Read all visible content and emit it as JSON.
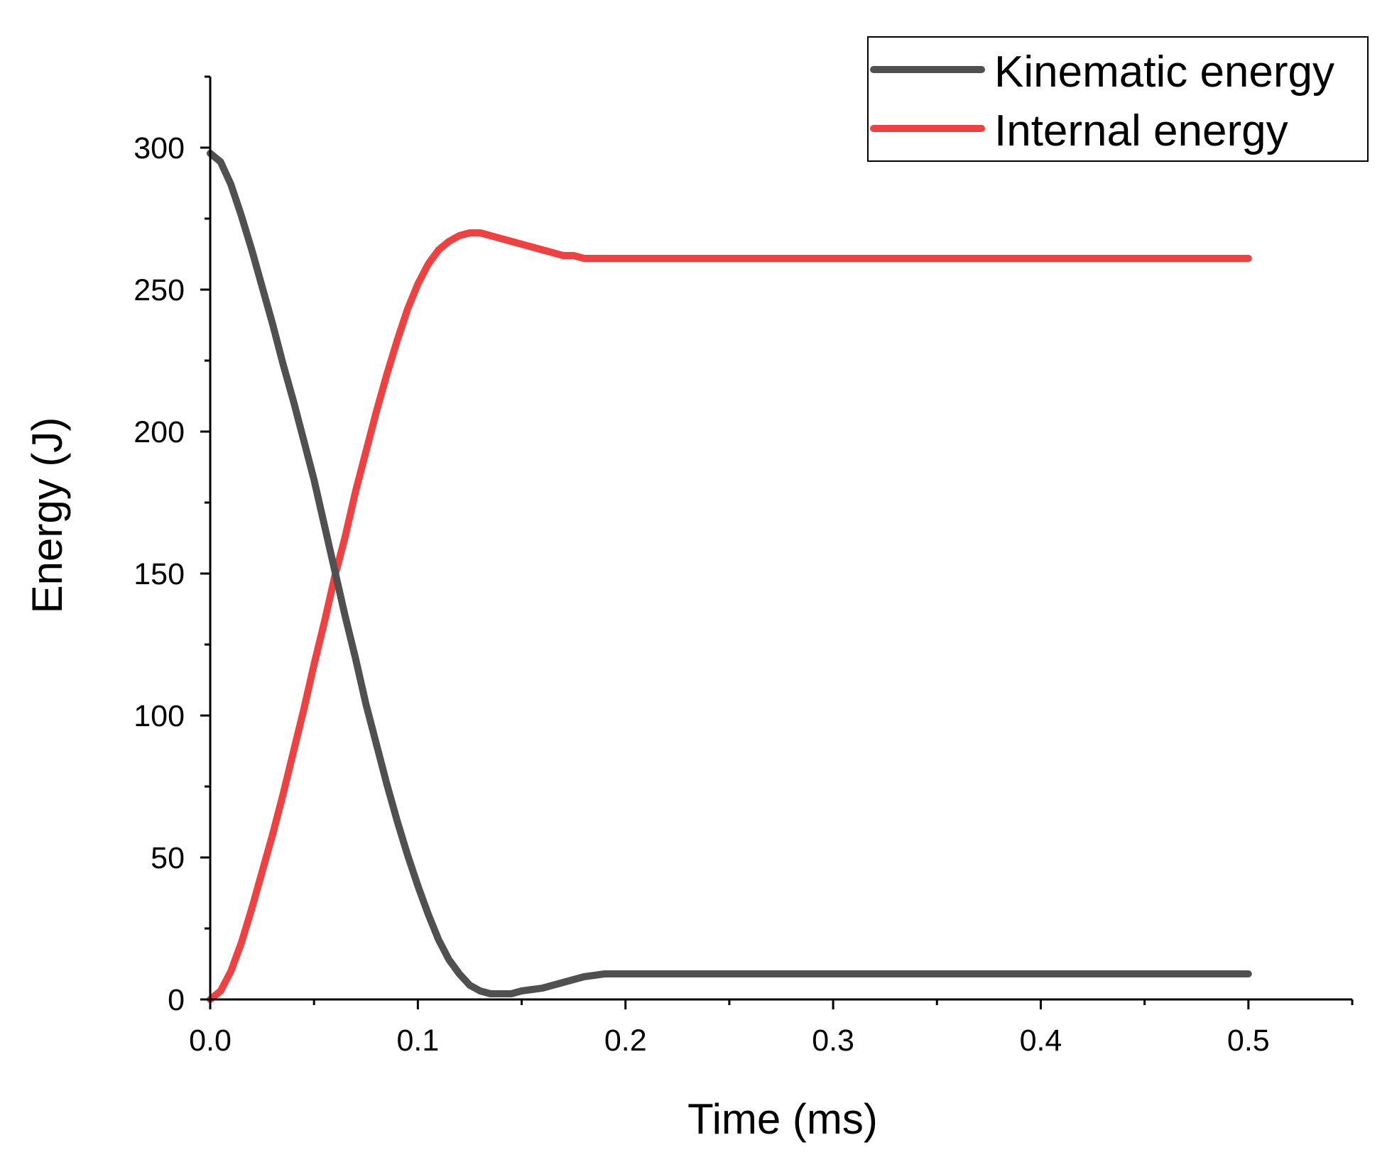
{
  "chart_data": {
    "type": "line",
    "title": "",
    "xlabel": "Time (ms)",
    "ylabel": "Energy (J)",
    "xlim": [
      0,
      0.55
    ],
    "ylim": [
      0,
      325
    ],
    "x_ticks": [
      0.0,
      0.1,
      0.2,
      0.3,
      0.4,
      0.5
    ],
    "x_tick_labels": [
      "0.0",
      "0.1",
      "0.2",
      "0.3",
      "0.4",
      "0.5"
    ],
    "x_minor_ticks": [
      0.05,
      0.15,
      0.25,
      0.35,
      0.45,
      0.55
    ],
    "y_ticks": [
      0,
      50,
      100,
      150,
      200,
      250,
      300
    ],
    "y_tick_labels": [
      "0",
      "50",
      "100",
      "150",
      "200",
      "250",
      "300"
    ],
    "y_minor_ticks": [
      25,
      75,
      125,
      175,
      225,
      275,
      325
    ],
    "grid": false,
    "legend_position": "top-right",
    "series": [
      {
        "name": "Kinematic energy",
        "color": "#505050",
        "x": [
          0,
          0.005,
          0.01,
          0.015,
          0.02,
          0.025,
          0.03,
          0.035,
          0.04,
          0.045,
          0.05,
          0.055,
          0.06,
          0.065,
          0.07,
          0.075,
          0.08,
          0.085,
          0.09,
          0.095,
          0.1,
          0.105,
          0.11,
          0.115,
          0.12,
          0.125,
          0.13,
          0.135,
          0.14,
          0.145,
          0.15,
          0.155,
          0.16,
          0.165,
          0.17,
          0.175,
          0.18,
          0.185,
          0.19,
          0.195,
          0.2,
          0.205,
          0.21,
          0.215,
          0.22,
          0.225,
          0.25,
          0.3,
          0.35,
          0.4,
          0.45,
          0.5
        ],
        "y": [
          298,
          295,
          287,
          276,
          264,
          251,
          238,
          224,
          211,
          197,
          183,
          167,
          151,
          135,
          120,
          104,
          90,
          76,
          63,
          51,
          40,
          30,
          21,
          14,
          9,
          5,
          3,
          2,
          2,
          2,
          3,
          3.5,
          4,
          5,
          6,
          7,
          8,
          8.5,
          9,
          9,
          9,
          9,
          9,
          9,
          9,
          9,
          9,
          9,
          9,
          9,
          9,
          9
        ]
      },
      {
        "name": "Internal energy",
        "color": "#f04040",
        "x": [
          0,
          0.005,
          0.01,
          0.015,
          0.02,
          0.025,
          0.03,
          0.035,
          0.04,
          0.045,
          0.05,
          0.055,
          0.06,
          0.065,
          0.07,
          0.075,
          0.08,
          0.085,
          0.09,
          0.095,
          0.1,
          0.105,
          0.11,
          0.115,
          0.12,
          0.125,
          0.13,
          0.135,
          0.14,
          0.145,
          0.15,
          0.155,
          0.16,
          0.165,
          0.17,
          0.175,
          0.18,
          0.185,
          0.19,
          0.195,
          0.2,
          0.205,
          0.21,
          0.215,
          0.22,
          0.225,
          0.25,
          0.3,
          0.35,
          0.4,
          0.45,
          0.5
        ],
        "y": [
          0,
          3,
          10,
          20,
          32,
          45,
          58,
          72,
          87,
          102,
          118,
          133,
          149,
          163,
          179,
          193,
          207,
          220,
          232,
          243,
          252,
          259,
          264,
          267,
          269,
          270,
          270,
          269,
          268,
          267,
          266,
          265,
          264,
          263,
          262,
          262,
          261,
          261,
          261,
          261,
          261,
          261,
          261,
          261,
          261,
          261,
          261,
          261,
          261,
          261,
          261,
          261
        ]
      }
    ]
  }
}
